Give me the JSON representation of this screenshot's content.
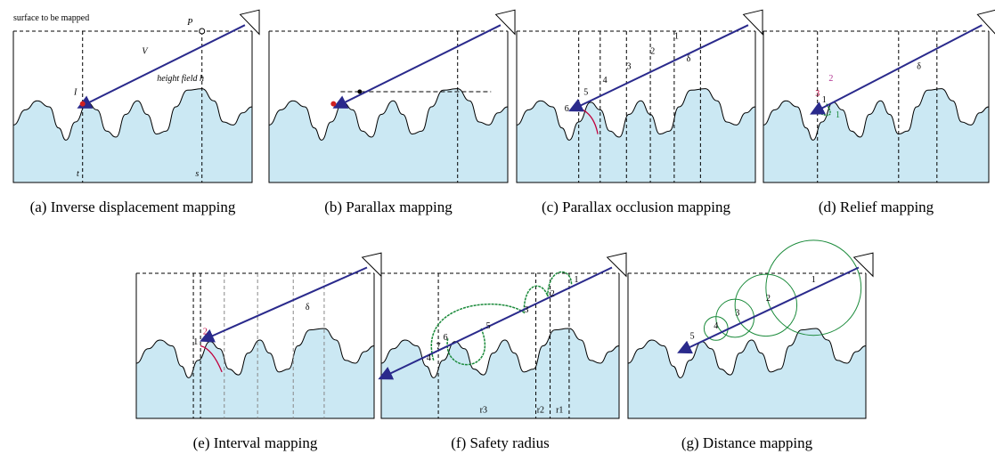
{
  "panels": [
    {
      "caption": "(a) Inverse displacement mapping",
      "labels": [
        "surface to be mapped",
        "P",
        "V",
        "I",
        "height field h",
        "t",
        "s"
      ]
    },
    {
      "caption": "(b) Parallax mapping",
      "labels": []
    },
    {
      "caption": "(c) Parallax occlusion mapping",
      "labels": [
        "1",
        "2",
        "3",
        "4",
        "5",
        "6",
        "δ"
      ]
    },
    {
      "caption": "(d) Relief mapping",
      "labels": [
        "3",
        "2",
        "1",
        "1",
        "δ"
      ]
    },
    {
      "caption": "(e) Interval mapping",
      "labels": [
        "2",
        "1",
        "δ"
      ]
    },
    {
      "caption": "(f) Safety radius",
      "labels": [
        "1",
        "2",
        "3",
        "4",
        "5",
        "6",
        "7",
        "r3",
        "r2",
        "r1"
      ]
    },
    {
      "caption": "(g) Distance mapping",
      "labels": [
        "1",
        "2",
        "3",
        "4",
        "5"
      ]
    }
  ]
}
